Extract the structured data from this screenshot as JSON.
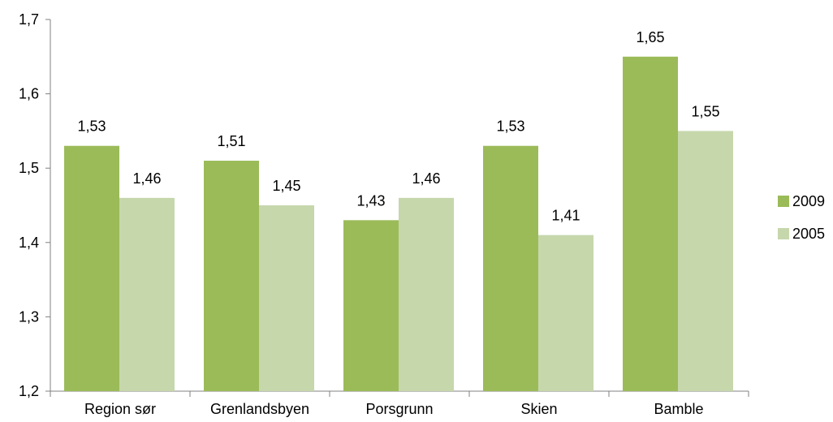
{
  "chart_data": {
    "type": "bar",
    "categories": [
      "Region sør",
      "Grenlandsbyen",
      "Porsgrunn",
      "Skien",
      "Bamble"
    ],
    "series": [
      {
        "name": "2009",
        "values": [
          1.53,
          1.51,
          1.43,
          1.53,
          1.65
        ],
        "labels": [
          "1,53",
          "1,51",
          "1,43",
          "1,53",
          "1,65"
        ],
        "color": "#9BBB59"
      },
      {
        "name": "2005",
        "values": [
          1.46,
          1.45,
          1.46,
          1.41,
          1.55
        ],
        "labels": [
          "1,46",
          "1,45",
          "1,46",
          "1,41",
          "1,55"
        ],
        "color": "#C6D7AC"
      }
    ],
    "ylim": [
      1.2,
      1.7
    ],
    "yticks": [
      1.2,
      1.3,
      1.4,
      1.5,
      1.6,
      1.7
    ],
    "ytick_labels": [
      "1,2",
      "1,3",
      "1,4",
      "1,5",
      "1,6",
      "1,7"
    ],
    "legend": "right",
    "grid": false
  }
}
